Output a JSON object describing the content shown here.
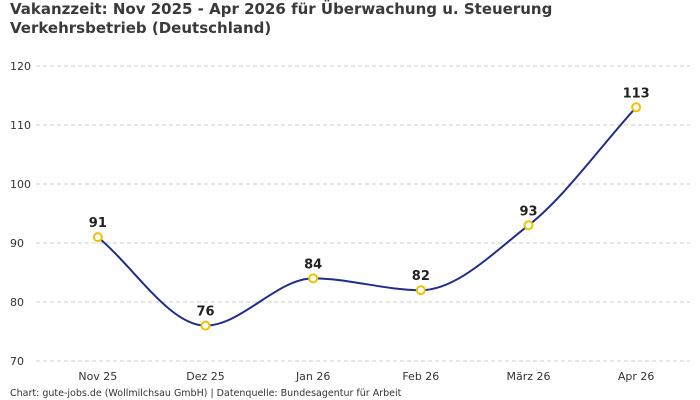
{
  "title": "Vakanzzeit: Nov 2025 - Apr 2026 für Überwachung u. Steuerung Verkehrsbetrieb (Deutschland)",
  "footer": "Chart: gute-jobs.de (Wollmilchsau GmbH) | Datenquelle: Bundesagentur für Arbeit",
  "colors": {
    "line": "#1f2e8c",
    "marker": "#f2c200",
    "grid": "#cccccc"
  },
  "chart_data": {
    "type": "line",
    "title": "Vakanzzeit: Nov 2025 - Apr 2026 für Überwachung u. Steuerung Verkehrsbetrieb (Deutschland)",
    "xlabel": "",
    "ylabel": "",
    "categories": [
      "Nov 25",
      "Dez 25",
      "Jan 26",
      "Feb 26",
      "März 26",
      "Apr 26"
    ],
    "series": [
      {
        "values": [
          91,
          76,
          84,
          82,
          93,
          113
        ]
      }
    ],
    "ylim": [
      70,
      120
    ],
    "yticks": [
      70,
      80,
      90,
      100,
      110,
      120
    ],
    "grid": true,
    "data_labels": true,
    "smooth": true
  }
}
